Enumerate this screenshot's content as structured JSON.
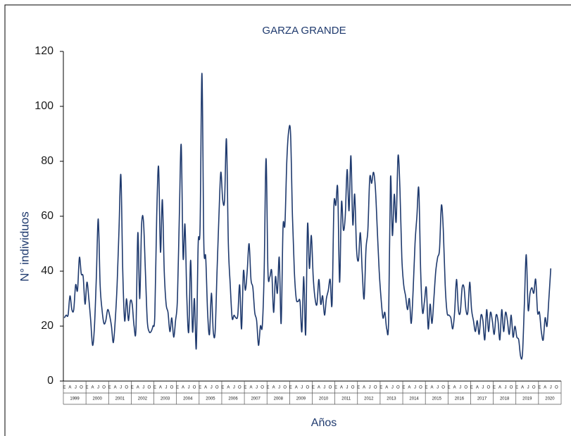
{
  "chart_data": {
    "type": "line",
    "title": "GARZA GRANDE",
    "ylabel": "N° individuos",
    "xlabel": "Años",
    "years": [
      "1999",
      "2000",
      "2001",
      "2002",
      "2003",
      "2004",
      "2005",
      "2006",
      "2007",
      "2008",
      "2009",
      "2010",
      "2011",
      "2012",
      "2013",
      "2014",
      "2015",
      "2016",
      "2017",
      "2018",
      "2019",
      "2020"
    ],
    "categories": [
      "E",
      null,
      null,
      "A",
      null,
      null,
      "J",
      null,
      null,
      "O",
      null,
      null,
      "E",
      null,
      null,
      "A",
      null,
      null,
      "J",
      null,
      null,
      "O",
      null,
      null,
      "E",
      null,
      null,
      "A",
      null,
      null,
      "J",
      null,
      null,
      "O",
      null,
      null,
      "E",
      null,
      null,
      "A",
      null,
      null,
      "J",
      null,
      null,
      "O",
      null,
      null,
      "E",
      null,
      null,
      "A",
      null,
      null,
      "J",
      null,
      null,
      "O",
      null,
      null,
      "E",
      null,
      null,
      "A",
      null,
      null,
      "J",
      null,
      null,
      "O",
      null,
      null,
      "E",
      null,
      null,
      "A",
      null,
      null,
      "J",
      null,
      null,
      "O",
      null,
      null,
      "E",
      null,
      null,
      "A",
      null,
      null,
      "J",
      null,
      null,
      "O",
      null,
      null,
      "E",
      null,
      null,
      "A",
      null,
      null,
      "J",
      null,
      null,
      "O",
      null,
      null,
      "E",
      null,
      null,
      "A",
      null,
      null,
      "J",
      null,
      null,
      "O",
      null,
      null,
      "E",
      null,
      null,
      "A",
      null,
      null,
      "J",
      null,
      null,
      "O",
      null,
      null,
      "E",
      null,
      null,
      "A",
      null,
      null,
      "J",
      null,
      null,
      "O",
      null,
      null,
      "E",
      null,
      null,
      "A",
      null,
      null,
      "J",
      null,
      null,
      "O",
      null,
      null,
      "E",
      null,
      null,
      "A",
      null,
      null,
      "J",
      null,
      null,
      "O",
      null,
      null,
      "E",
      null,
      null,
      "A",
      null,
      null,
      "J",
      null,
      null,
      "O",
      null,
      null,
      "E",
      null,
      null,
      "A",
      null,
      null,
      "J",
      null,
      null,
      "O",
      null,
      null,
      "E",
      null,
      null,
      "A",
      null,
      null,
      "J",
      null,
      null,
      "O",
      null,
      null,
      "E",
      null,
      null,
      "A",
      null,
      null,
      "J",
      null,
      null,
      "O",
      null,
      null,
      "E",
      null,
      null,
      "A",
      null,
      null,
      "J",
      null,
      null,
      "O",
      null,
      null,
      "E",
      null,
      null,
      "A",
      null,
      null,
      "J",
      null,
      null,
      "O",
      null,
      null,
      "E",
      null,
      null,
      "A",
      null,
      null,
      "J",
      null,
      null,
      "O",
      null,
      null,
      "E",
      null,
      null,
      "A",
      null,
      null,
      "J",
      null,
      null,
      "O",
      null,
      null
    ],
    "series": [
      {
        "name": "Garza grande",
        "color": "#1f3a6e",
        "values": [
          23,
          24,
          24,
          31,
          26,
          26,
          35,
          33,
          45,
          39,
          38,
          28,
          36,
          30,
          22,
          13,
          20,
          38,
          59,
          35,
          26,
          21,
          22,
          26,
          24,
          20,
          14,
          22,
          35,
          55,
          75,
          40,
          22,
          30,
          22,
          29,
          28,
          20,
          19,
          54,
          30,
          57,
          58,
          40,
          22,
          18,
          18,
          20,
          24,
          60,
          78,
          47,
          66,
          40,
          28,
          25,
          18,
          23,
          16,
          22,
          30,
          60,
          86,
          45,
          57,
          30,
          18,
          44,
          18,
          30,
          12,
          50,
          56,
          112,
          50,
          45,
          25,
          17,
          32,
          18,
          18,
          40,
          60,
          76,
          66,
          66,
          88,
          50,
          35,
          23,
          24,
          23,
          24,
          35,
          19,
          40,
          33,
          40,
          50,
          37,
          34,
          25,
          22,
          13,
          20,
          20,
          40,
          81,
          40,
          38,
          40,
          25,
          38,
          32,
          45,
          21,
          56,
          57,
          80,
          91,
          90,
          60,
          40,
          30,
          29,
          29,
          18,
          38,
          17,
          57,
          41,
          53,
          38,
          30,
          28,
          37,
          28,
          31,
          24,
          30,
          33,
          37,
          28,
          64,
          64,
          70,
          36,
          65,
          55,
          60,
          77,
          62,
          82,
          57,
          68,
          48,
          44,
          54,
          40,
          30,
          48,
          55,
          74,
          72,
          76,
          70,
          55,
          40,
          30,
          23,
          25,
          19,
          22,
          74,
          53,
          68,
          58,
          82,
          70,
          45,
          35,
          31,
          26,
          30,
          21,
          33,
          50,
          60,
          70,
          40,
          25,
          29,
          34,
          19,
          28,
          21,
          30,
          40,
          45,
          48,
          64,
          55,
          35,
          25,
          24,
          23,
          19,
          25,
          37,
          26,
          25,
          34,
          34,
          26,
          25,
          36,
          26,
          22,
          18,
          22,
          17,
          24,
          22,
          15,
          26,
          18,
          25,
          22,
          17,
          24,
          22,
          15,
          26,
          18,
          25,
          22,
          17,
          24,
          16,
          20,
          16,
          15,
          9,
          10,
          28,
          46,
          26,
          32,
          34,
          32,
          37,
          25,
          25,
          18,
          15,
          23,
          20,
          30,
          41,
          null,
          null,
          null,
          null,
          null
        ]
      }
    ],
    "ylim": [
      0,
      120
    ],
    "yticks": [
      0,
      20,
      40,
      60,
      80,
      100,
      120
    ],
    "grid": false
  }
}
